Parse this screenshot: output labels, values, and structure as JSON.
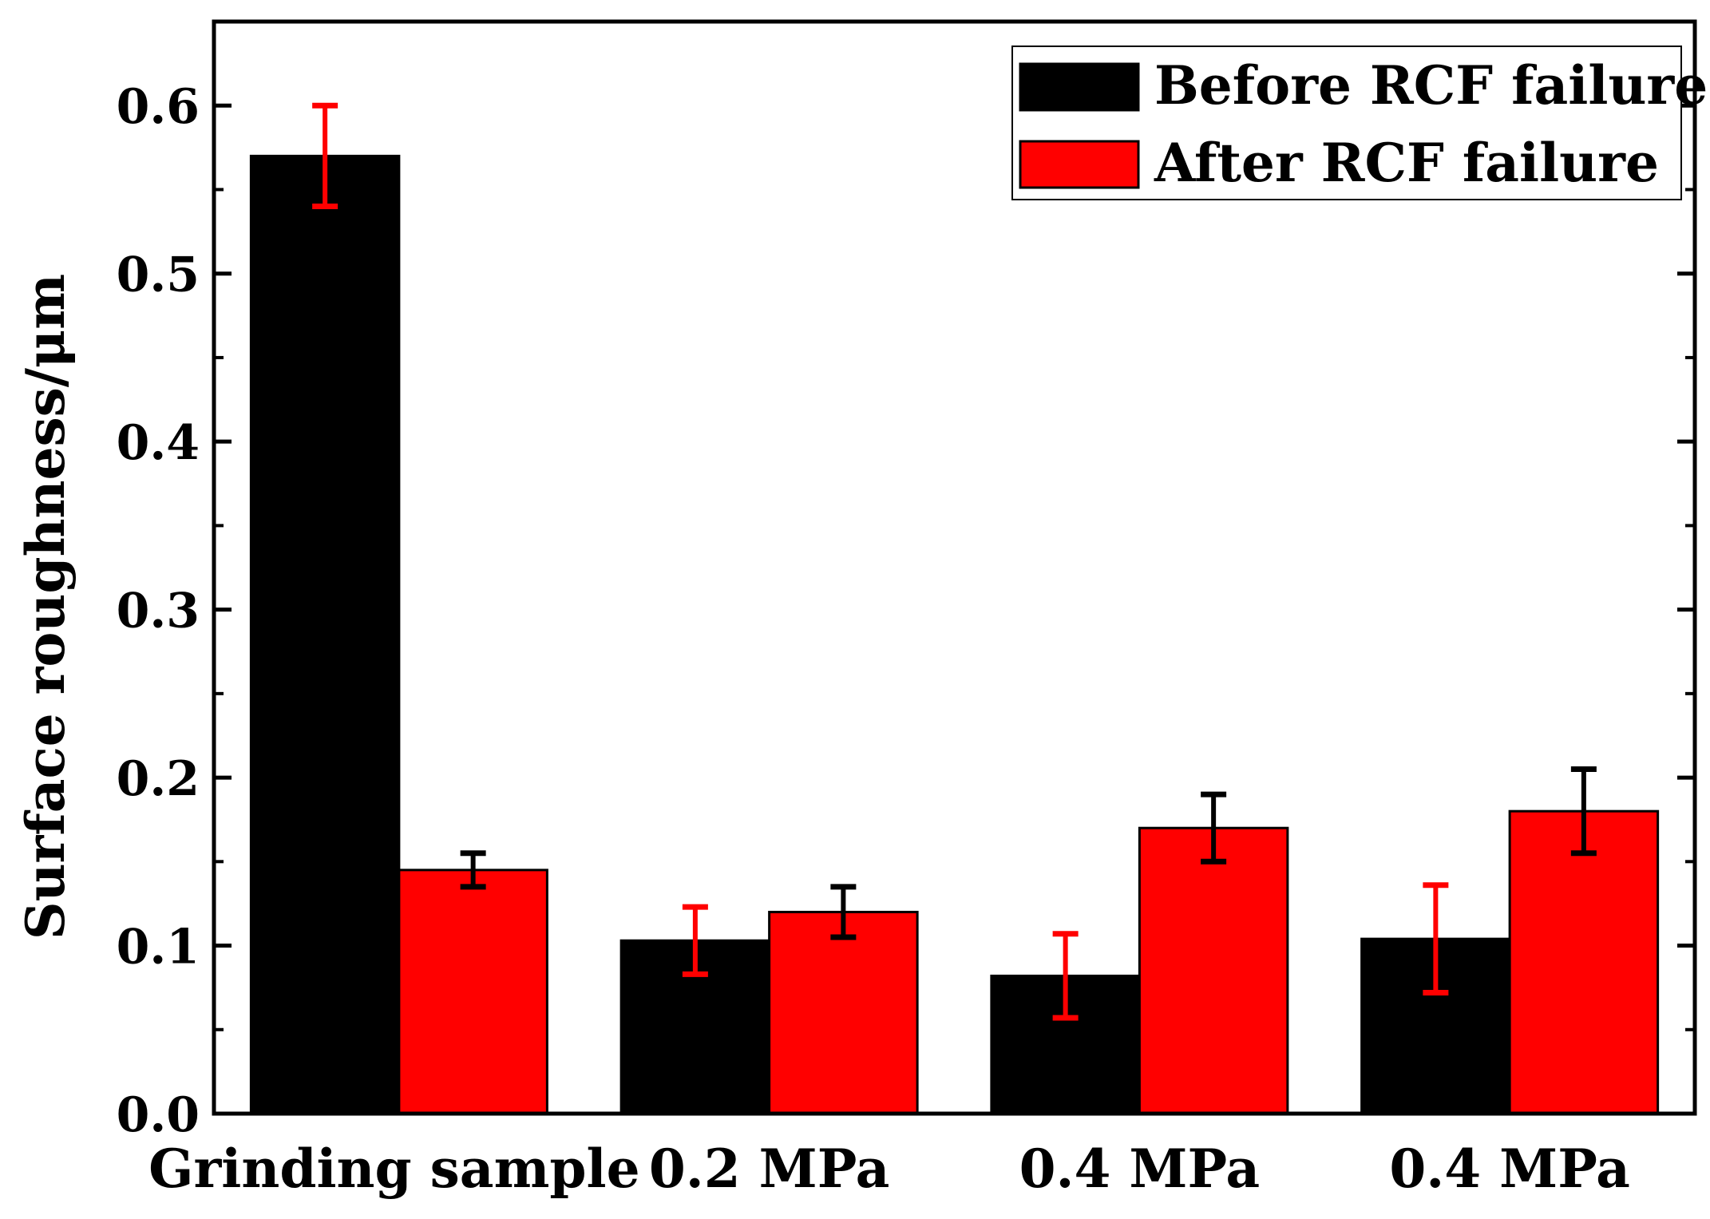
{
  "chart_data": {
    "type": "bar",
    "title": "",
    "xlabel": "",
    "ylabel": "Surface roughness/μm",
    "ylim": [
      0.0,
      0.65
    ],
    "yticks": [
      "0.0",
      "0.1",
      "0.2",
      "0.3",
      "0.4",
      "0.5",
      "0.6"
    ],
    "ytick_values": [
      0.0,
      0.1,
      0.2,
      0.3,
      0.4,
      0.5,
      0.6
    ],
    "categories": [
      "Grinding sample",
      "0.2 MPa",
      "0.4 MPa",
      "0.4 MPa"
    ],
    "legend_position": "top-right",
    "grid": false,
    "series": [
      {
        "name": "Before RCF failure",
        "color": "#000000",
        "error_color": "#ff0000",
        "values": [
          0.57,
          0.103,
          0.082,
          0.104
        ],
        "errors": [
          0.03,
          0.02,
          0.025,
          0.032
        ]
      },
      {
        "name": "After RCF failure",
        "color": "#ff0000",
        "error_color": "#000000",
        "values": [
          0.145,
          0.12,
          0.17,
          0.18
        ],
        "errors": [
          0.01,
          0.015,
          0.02,
          0.025
        ]
      }
    ]
  }
}
